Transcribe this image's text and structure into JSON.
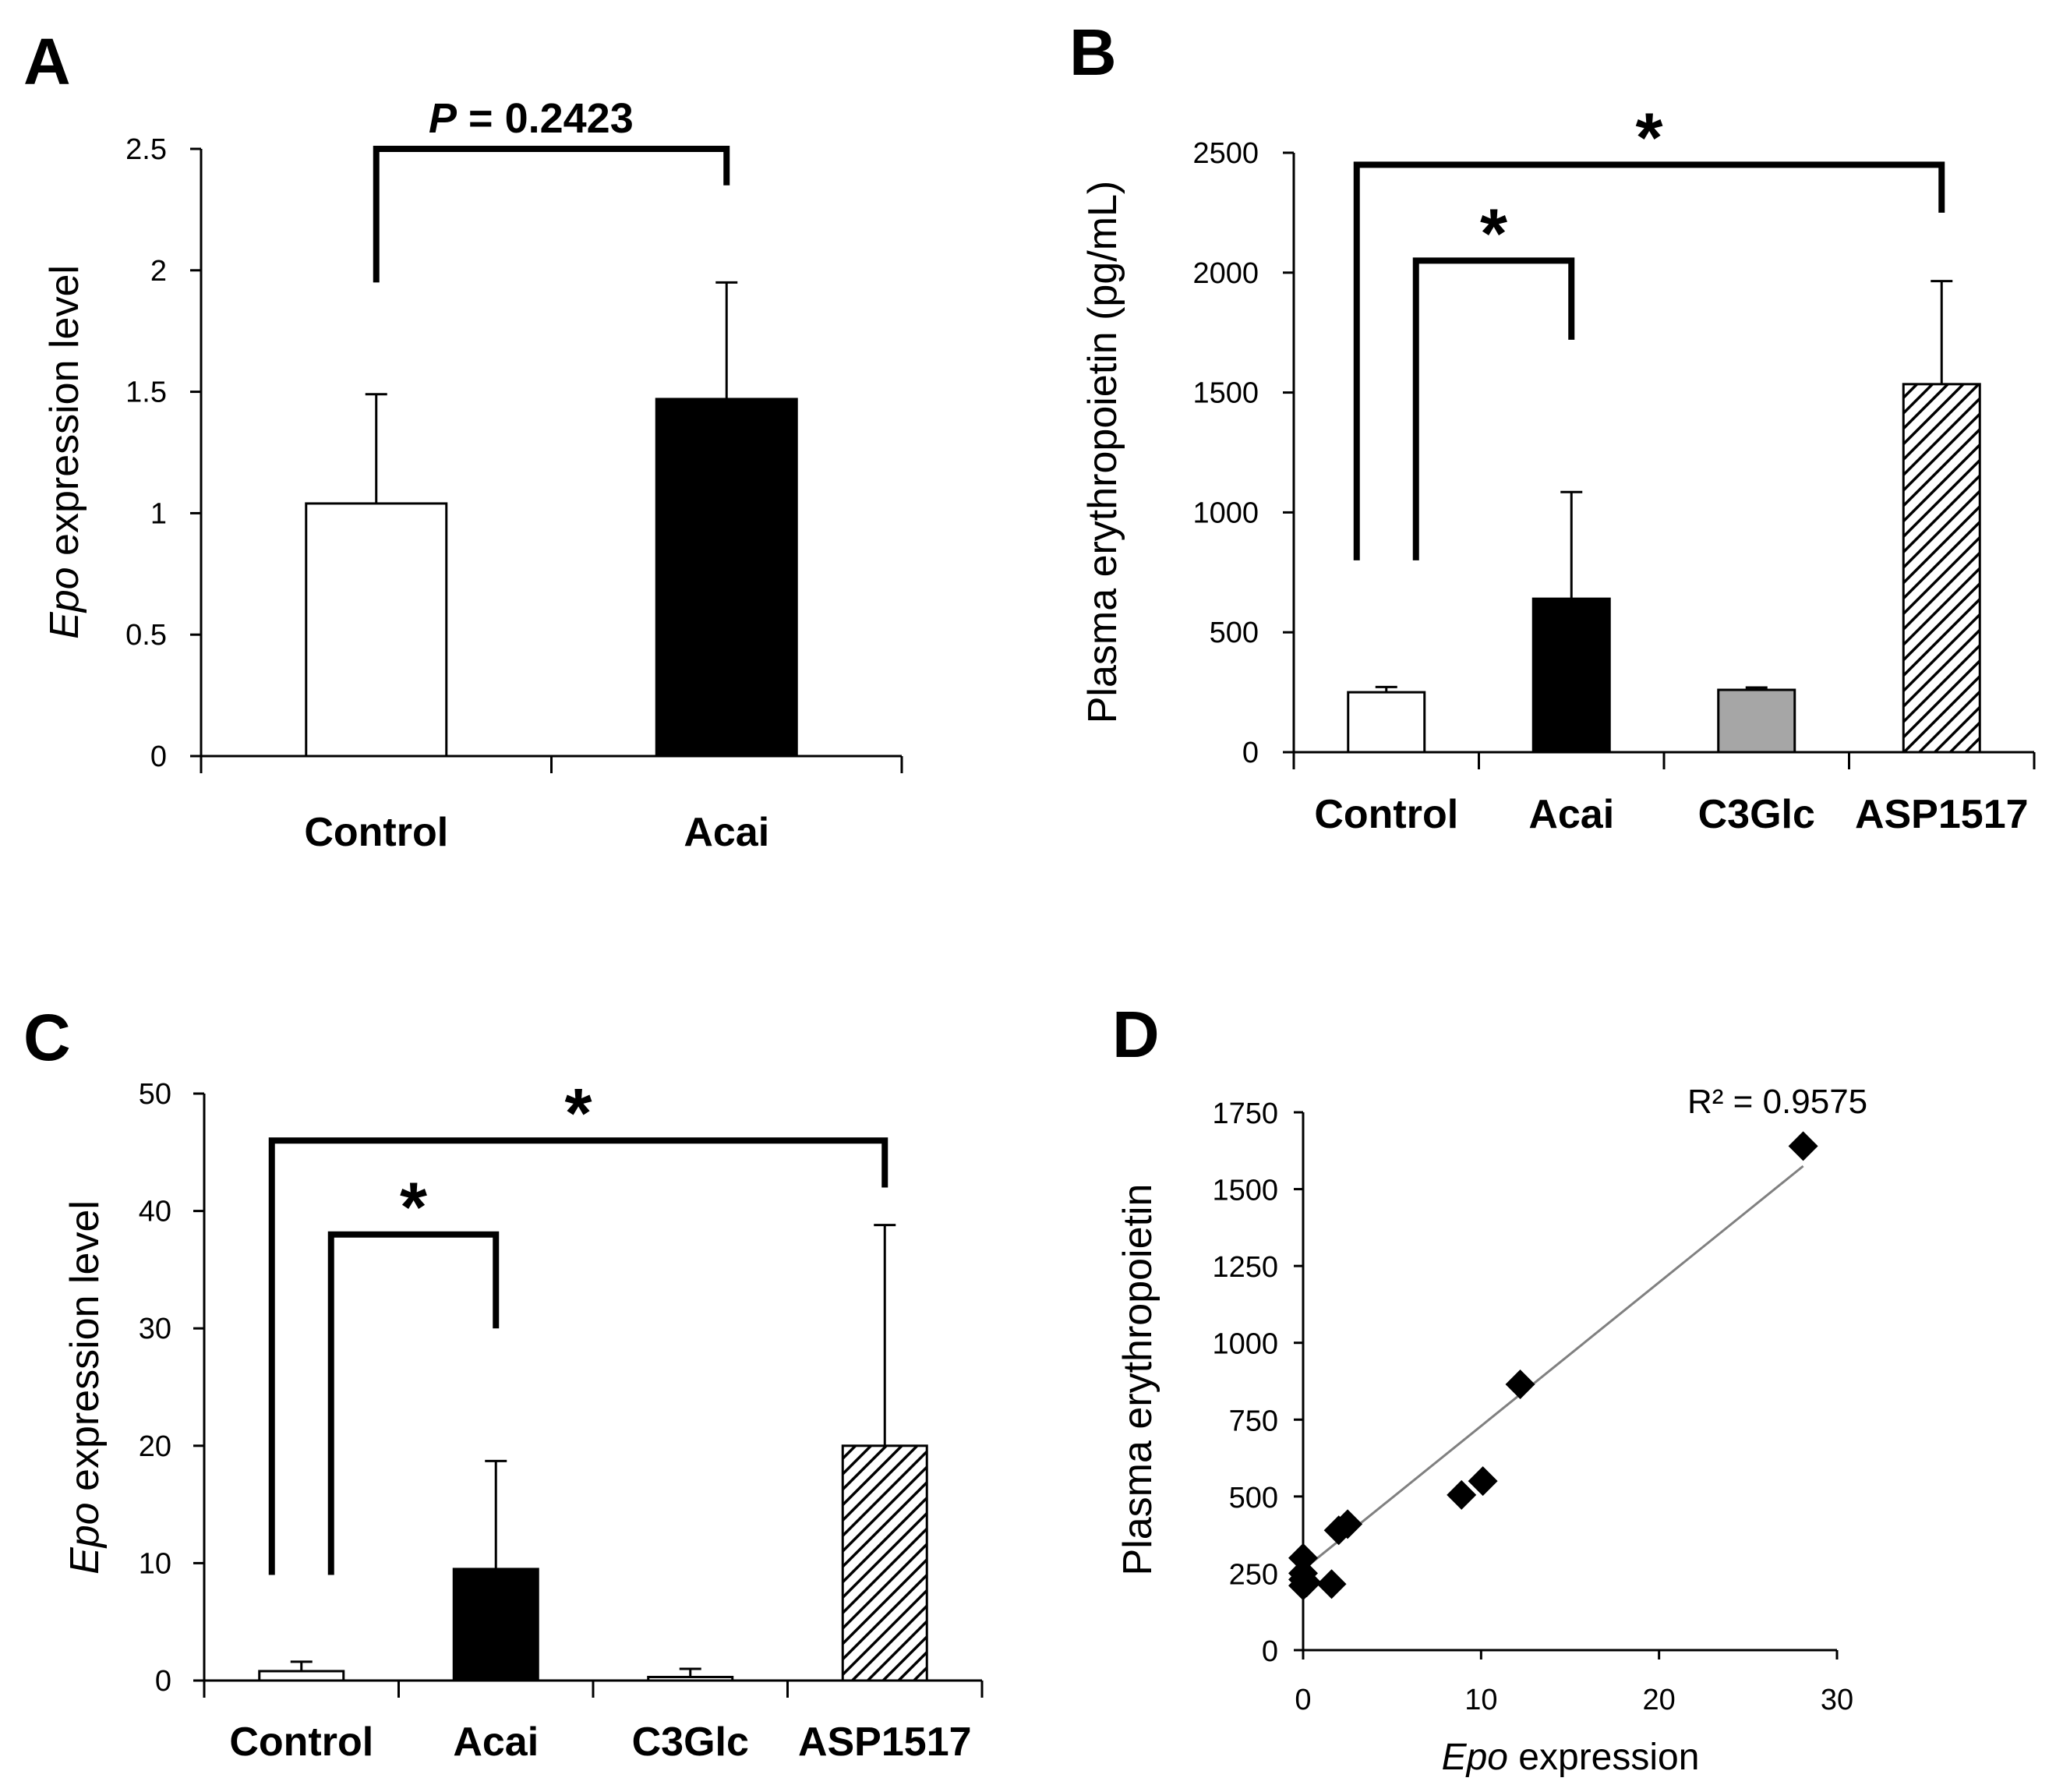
{
  "panels": [
    {
      "letter": "A"
    },
    {
      "letter": "B"
    },
    {
      "letter": "C"
    },
    {
      "letter": "D"
    }
  ],
  "chart_data": [
    {
      "type": "bar",
      "panel": "A",
      "categories": [
        "Control",
        "Acai"
      ],
      "values": [
        1.04,
        1.47
      ],
      "errors": [
        0.45,
        0.48
      ],
      "fills": [
        "#ffffff",
        "#000000"
      ],
      "ylabel_italic": "Epo",
      "ylabel_rest": " expression level",
      "ylim": [
        0,
        2.5
      ],
      "yticks": [
        0,
        0.5,
        1,
        1.5,
        2,
        2.5
      ],
      "ytick_labels": [
        "0",
        "0.5",
        "1",
        "1.5",
        "2",
        "2.5"
      ],
      "annotations": [
        {
          "from": 0,
          "to": 1,
          "level": 2.5,
          "left_end": 1.95,
          "right_end": 2.35,
          "label_italic": "P",
          "label_rest": " = 0.2423"
        }
      ]
    },
    {
      "type": "bar",
      "panel": "B",
      "categories": [
        "Control",
        "Acai",
        "C3Glc",
        "ASP1517"
      ],
      "values": [
        250,
        640,
        260,
        1535
      ],
      "errors": [
        22,
        445,
        10,
        430
      ],
      "fills": [
        "#ffffff",
        "#000000",
        "#a6a6a6",
        "hatch"
      ],
      "ylabel": "Plasma erythropoietin (pg/mL)",
      "ylim": [
        0,
        2500
      ],
      "yticks": [
        0,
        500,
        1000,
        1500,
        2000,
        2500
      ],
      "ytick_labels": [
        "0",
        "500",
        "1000",
        "1500",
        "2000",
        "2500"
      ],
      "annotations": [
        {
          "from": 0,
          "to": 3,
          "level": 2450,
          "left_end": 800,
          "right_end": 2250,
          "label": "*"
        },
        {
          "from": 0,
          "to": 1,
          "level": 2050,
          "left_end": 800,
          "right_end": 1720,
          "label": "*"
        }
      ]
    },
    {
      "type": "bar",
      "panel": "C",
      "categories": [
        "Control",
        "Acai",
        "C3Glc",
        "ASP1517"
      ],
      "values": [
        0.8,
        9.5,
        0.3,
        20
      ],
      "errors": [
        0.8,
        9.2,
        0.7,
        18.8
      ],
      "fills": [
        "#ffffff",
        "#000000",
        "#ffffff",
        "hatch"
      ],
      "ylabel_italic": "Epo",
      "ylabel_rest": " expression level",
      "ylim": [
        0,
        50
      ],
      "yticks": [
        0,
        10,
        20,
        30,
        40,
        50
      ],
      "ytick_labels": [
        "0",
        "10",
        "20",
        "30",
        "40",
        "50"
      ],
      "annotations": [
        {
          "from": 0,
          "to": 3,
          "level": 46,
          "left_end": 9,
          "right_end": 42,
          "label": "*"
        },
        {
          "from": 0,
          "to": 1,
          "level": 38,
          "left_end": 9,
          "right_end": 30,
          "label": "*"
        }
      ]
    },
    {
      "type": "scatter",
      "panel": "D",
      "points": [
        [
          0,
          300
        ],
        [
          0,
          250
        ],
        [
          0,
          230
        ],
        [
          0,
          210
        ],
        [
          0.2,
          220
        ],
        [
          1.6,
          215
        ],
        [
          2.0,
          390
        ],
        [
          2.5,
          410
        ],
        [
          8.9,
          505
        ],
        [
          10.1,
          550
        ],
        [
          12.2,
          865
        ],
        [
          28.1,
          1640
        ]
      ],
      "trendline": {
        "x": [
          0,
          28.1
        ],
        "y": [
          262,
          1575
        ]
      },
      "r2_label": "R² = 0.9575",
      "xlabel_italic": "Epo",
      "xlabel_rest": " expression",
      "ylabel": "Plasma erythropoietin",
      "xlim": [
        0,
        30
      ],
      "ylim": [
        0,
        1750
      ],
      "xticks": [
        0,
        10,
        20,
        30
      ],
      "xtick_labels": [
        "0",
        "10",
        "20",
        "30"
      ],
      "yticks": [
        0,
        250,
        500,
        750,
        1000,
        1250,
        1500,
        1750
      ],
      "ytick_labels": [
        "0",
        "250",
        "500",
        "750",
        "1000",
        "1250",
        "1500",
        "1750"
      ]
    }
  ]
}
